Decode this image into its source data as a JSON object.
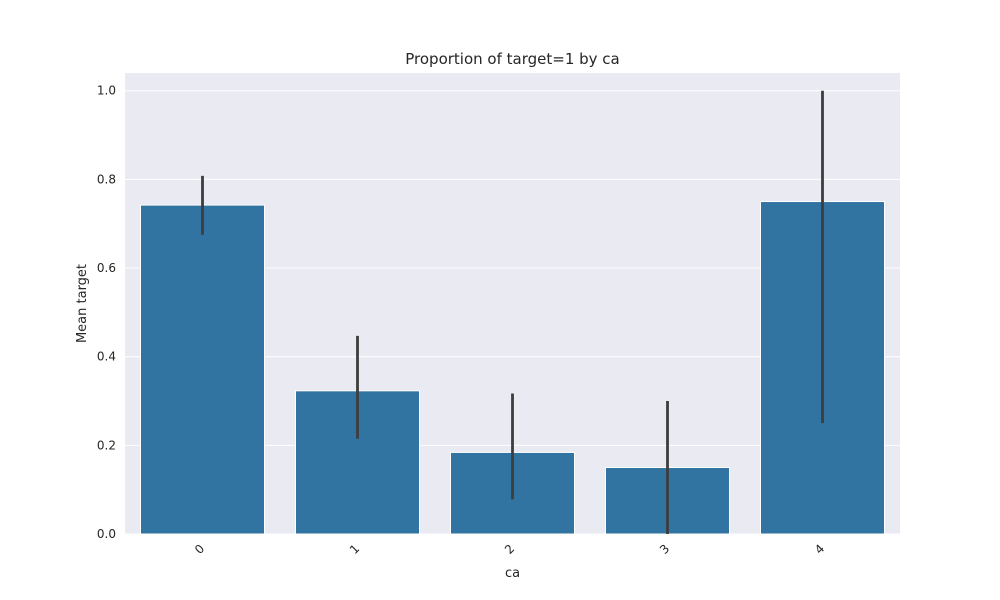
{
  "chart_data": {
    "type": "bar",
    "title": "Proportion of target=1 by ca",
    "xlabel": "ca",
    "ylabel": "Mean target",
    "categories": [
      "0",
      "1",
      "2",
      "3",
      "4"
    ],
    "values": [
      0.742,
      0.323,
      0.184,
      0.15,
      0.75
    ],
    "error_low": [
      0.675,
      0.215,
      0.078,
      0.0,
      0.25
    ],
    "error_high": [
      0.808,
      0.447,
      0.317,
      0.3,
      1.0
    ],
    "ylim": [
      0,
      1.04
    ],
    "yticks": [
      0.0,
      0.2,
      0.4,
      0.6,
      0.8,
      1.0
    ],
    "ytick_labels": [
      "0.0",
      "0.2",
      "0.4",
      "0.6",
      "0.8",
      "1.0"
    ],
    "grid": true,
    "colors": {
      "bar": "#3274a1",
      "background": "#eaeaf2",
      "grid": "#ffffff",
      "errorbar": "#3d3d3d",
      "text": "#262626"
    }
  }
}
